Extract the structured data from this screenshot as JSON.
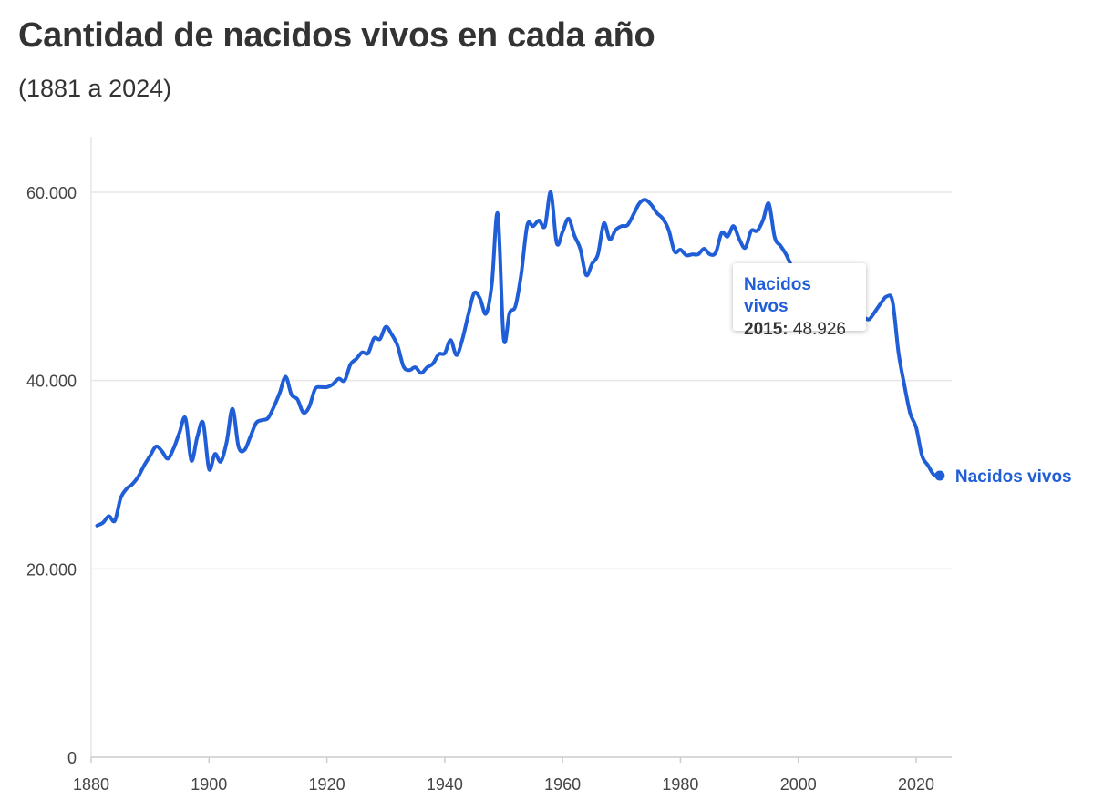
{
  "header": {
    "title": "Cantidad de nacidos vivos en cada año",
    "subtitle": "(1881 a 2024)"
  },
  "tooltip": {
    "series": "Nacidos vivos",
    "year": "2015:",
    "value": "48.926"
  },
  "colors": {
    "series": "#1f5ed6",
    "grid": "#e6e6e6",
    "axis": "#cccccc"
  },
  "chart_data": {
    "type": "line",
    "title": "Cantidad de nacidos vivos en cada año",
    "subtitle": "(1881 a 2024)",
    "xlim": [
      1880,
      2026
    ],
    "ylim": [
      0,
      60000
    ],
    "x_ticks": [
      1880,
      1900,
      1920,
      1940,
      1960,
      1980,
      2000,
      2020
    ],
    "x_tick_labels": [
      "1880",
      "1900",
      "1920",
      "1940",
      "1960",
      "1980",
      "2000",
      "2020"
    ],
    "y_ticks": [
      0,
      20000,
      40000,
      60000
    ],
    "y_tick_labels": [
      "0",
      "20.000",
      "40.000",
      "60.000"
    ],
    "grid": true,
    "legend": "end-label",
    "series": [
      {
        "name": "Nacidos vivos",
        "end_label": "Nacidos vivos",
        "x": [
          1881,
          1882,
          1883,
          1884,
          1885,
          1886,
          1887,
          1888,
          1889,
          1890,
          1891,
          1892,
          1893,
          1894,
          1895,
          1896,
          1897,
          1898,
          1899,
          1900,
          1901,
          1902,
          1903,
          1904,
          1905,
          1906,
          1907,
          1908,
          1909,
          1910,
          1911,
          1912,
          1913,
          1914,
          1915,
          1916,
          1917,
          1918,
          1919,
          1920,
          1921,
          1922,
          1923,
          1924,
          1925,
          1926,
          1927,
          1928,
          1929,
          1930,
          1931,
          1932,
          1933,
          1934,
          1935,
          1936,
          1937,
          1938,
          1939,
          1940,
          1941,
          1942,
          1943,
          1944,
          1945,
          1946,
          1947,
          1948,
          1949,
          1950,
          1951,
          1952,
          1953,
          1954,
          1955,
          1956,
          1957,
          1958,
          1959,
          1960,
          1961,
          1962,
          1963,
          1964,
          1965,
          1966,
          1967,
          1968,
          1969,
          1970,
          1971,
          1972,
          1973,
          1974,
          1975,
          1976,
          1977,
          1978,
          1979,
          1980,
          1981,
          1982,
          1983,
          1984,
          1985,
          1986,
          1987,
          1988,
          1989,
          1990,
          1991,
          1992,
          1993,
          1994,
          1995,
          1996,
          1997,
          1998,
          1999,
          2000,
          2001,
          2002,
          2003,
          2004,
          2005,
          2006,
          2007,
          2008,
          2009,
          2010,
          2011,
          2012,
          2013,
          2014,
          2015,
          2016,
          2017,
          2018,
          2019,
          2020,
          2021,
          2022,
          2023,
          2024
        ],
        "values": [
          24600,
          24900,
          25600,
          25100,
          27500,
          28500,
          29000,
          29800,
          31000,
          32000,
          33000,
          32500,
          31700,
          32800,
          34500,
          36000,
          31500,
          34000,
          35500,
          30600,
          32200,
          31400,
          33500,
          37000,
          33000,
          32600,
          34000,
          35500,
          35800,
          36000,
          37200,
          38700,
          40400,
          38500,
          38000,
          36600,
          37200,
          39100,
          39300,
          39300,
          39600,
          40200,
          40000,
          41700,
          42300,
          43000,
          42900,
          44500,
          44400,
          45700,
          44900,
          43700,
          41500,
          41100,
          41400,
          40800,
          41400,
          41800,
          42800,
          42900,
          44300,
          42700,
          44400,
          47000,
          49300,
          48700,
          47100,
          50300,
          57700,
          44500,
          47200,
          47900,
          51400,
          56500,
          56400,
          57000,
          56400,
          60000,
          54600,
          55800,
          57200,
          55400,
          54000,
          51200,
          52400,
          53400,
          56700,
          55000,
          56000,
          56400,
          56500,
          57600,
          58800,
          59200,
          58700,
          57800,
          57200,
          56000,
          53700,
          53900,
          53300,
          53400,
          53400,
          54000,
          53400,
          53600,
          55700,
          55300,
          56400,
          55000,
          54100,
          55900,
          55900,
          57000,
          58800,
          55200,
          54300,
          53300,
          51900,
          50500,
          50000,
          49000,
          48000,
          47500,
          47500,
          48000,
          47500,
          47800,
          47500,
          47200,
          46800,
          46500,
          47300,
          48200,
          48926,
          48400,
          43000,
          39500,
          36500,
          35000,
          32000,
          31000,
          30000,
          29900
        ]
      }
    ]
  }
}
